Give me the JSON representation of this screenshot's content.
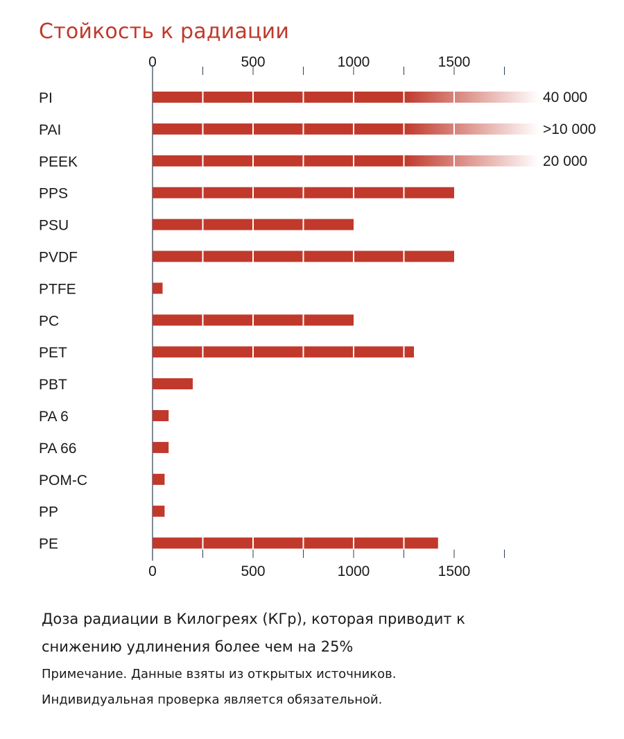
{
  "chart_data": {
    "type": "bar",
    "orientation": "horizontal",
    "title": "Стойкость к радиации",
    "xlabel_lines": [
      "Доза радиации в Килогреях (КГр), которая приводит к",
      "снижению удлинения более чем на 25%"
    ],
    "notes": [
      "Примечание. Данные взяты из открытых источников.",
      "Индивидуальная проверка является обязательной."
    ],
    "xlim": [
      0,
      1750
    ],
    "ticks": [
      0,
      250,
      500,
      750,
      1000,
      1250,
      1500,
      1750
    ],
    "tick_labels": [
      {
        "value": 0,
        "label": "0"
      },
      {
        "value": 500,
        "label": "500"
      },
      {
        "value": 1000,
        "label": "1000"
      },
      {
        "value": 1500,
        "label": "1500"
      }
    ],
    "axis_top": true,
    "axis_bottom": true,
    "gridlines_inside_bars": true,
    "bar_color": "#c0392b",
    "categories": [
      "PI",
      "PAI",
      "PEEK",
      "PPS",
      "PSU",
      "PVDF",
      "PTFE",
      "PC",
      "PET",
      "PBT",
      "PA 6",
      "PA 66",
      "POM-C",
      "PP",
      "PE"
    ],
    "values": [
      40000,
      10000,
      20000,
      1500,
      1000,
      1500,
      50,
      1000,
      1300,
      200,
      80,
      80,
      60,
      60,
      1420
    ],
    "value_labels": [
      "40 000",
      ">10 000",
      "20 000",
      "",
      "",
      "",
      "",
      "",
      "",
      "",
      "",
      "",
      "",
      "",
      ""
    ]
  }
}
